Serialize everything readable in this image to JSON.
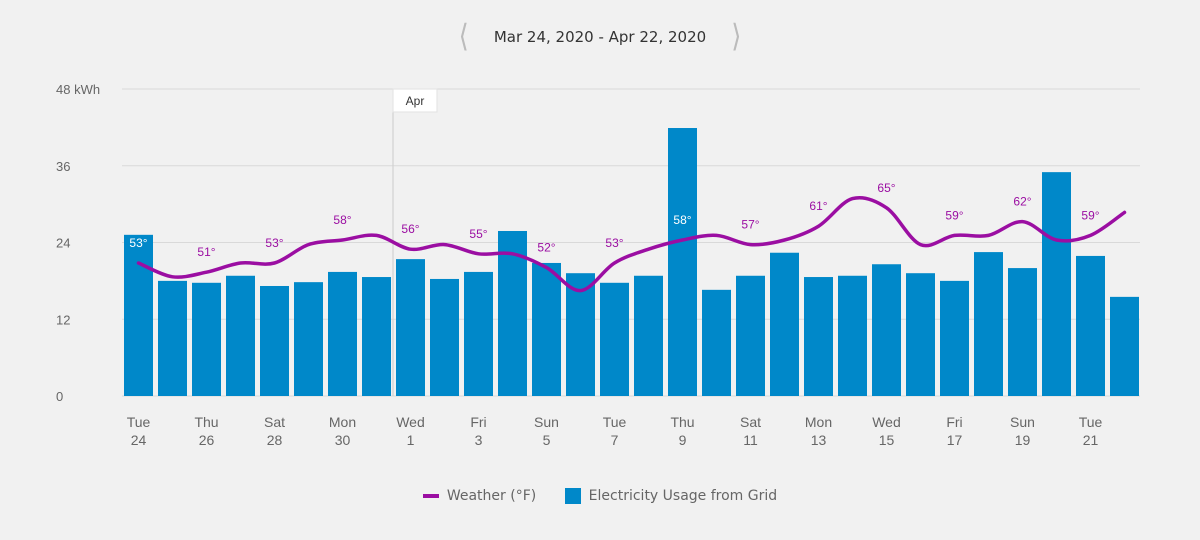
{
  "header": {
    "range": "Mar 24, 2020 - Apr 22, 2020",
    "prev_icon": "chevron-left-icon",
    "next_icon": "chevron-right-icon"
  },
  "colors": {
    "bar": "#0088c9",
    "line": "#9b0ea2",
    "grid": "#d9d9d9"
  },
  "chart_data": {
    "type": "bar",
    "title": "",
    "ylabel": "kWh",
    "ylim": [
      0,
      48
    ],
    "yticks": [
      "0",
      "12",
      "24",
      "36",
      "48 kWh"
    ],
    "ytick_values": [
      0,
      12,
      24,
      36,
      48
    ],
    "marker": {
      "label": "Apr",
      "day_index": 8
    },
    "xtick_labels": [
      {
        "day": "Tue",
        "num": "24"
      },
      {
        "day": "Thu",
        "num": "26"
      },
      {
        "day": "Sat",
        "num": "28"
      },
      {
        "day": "Mon",
        "num": "30"
      },
      {
        "day": "Wed",
        "num": "1"
      },
      {
        "day": "Fri",
        "num": "3"
      },
      {
        "day": "Sun",
        "num": "5"
      },
      {
        "day": "Tue",
        "num": "7"
      },
      {
        "day": "Thu",
        "num": "9"
      },
      {
        "day": "Sat",
        "num": "11"
      },
      {
        "day": "Mon",
        "num": "13"
      },
      {
        "day": "Wed",
        "num": "15"
      },
      {
        "day": "Fri",
        "num": "17"
      },
      {
        "day": "Sun",
        "num": "19"
      },
      {
        "day": "Tue",
        "num": "21"
      }
    ],
    "series": [
      {
        "name": "Electricity Usage from Grid",
        "type": "bar",
        "values": [
          25.2,
          18.0,
          17.7,
          18.8,
          17.2,
          17.8,
          19.4,
          18.6,
          21.4,
          18.3,
          19.4,
          25.8,
          20.8,
          19.2,
          17.7,
          18.8,
          41.9,
          16.6,
          18.8,
          22.4,
          18.6,
          18.8,
          20.6,
          19.2,
          18.0,
          22.5,
          20.0,
          35.0,
          21.9,
          15.5
        ]
      },
      {
        "name": "Weather (°F)",
        "type": "line",
        "values": [
          53,
          50,
          51,
          53,
          53,
          57,
          58,
          59,
          56,
          57,
          55,
          55,
          52,
          47,
          53,
          56,
          58,
          59,
          57,
          58,
          61,
          67,
          65,
          57,
          59,
          59,
          62,
          58,
          59,
          64
        ],
        "labels": [
          "53°",
          "51°",
          "53°",
          "58°",
          "56°",
          "55°",
          "52°",
          "53°",
          "58°",
          "57°",
          "61°",
          "65°",
          "59°",
          "62°",
          "59°"
        ]
      }
    ],
    "legend": {
      "placement": "bottom",
      "items": [
        "Weather (°F)",
        "Electricity Usage from Grid"
      ]
    }
  }
}
